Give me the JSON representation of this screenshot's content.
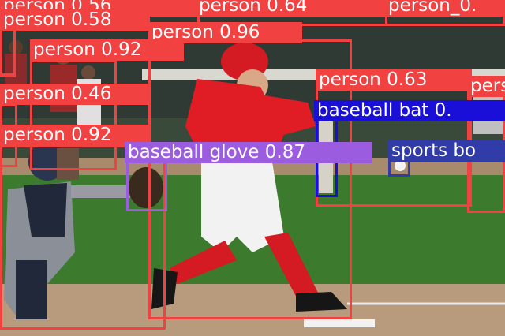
{
  "scene": {
    "description_hidden": false,
    "colors": {
      "person": "#f24141",
      "baseball_bat": "#1a0fd8",
      "baseball_glove": "#9c5ce0",
      "sports_ball": "#323ca8",
      "grass": "#3c7a2e",
      "dirt": "#b89a7c"
    }
  },
  "detections": [
    {
      "label": "person",
      "score": "0.56",
      "text": "person 0.56",
      "color": "#f24141"
    },
    {
      "label": "person",
      "score": "0.64",
      "text": "person 0.64",
      "color": "#f24141"
    },
    {
      "label": "person",
      "score": "0.58",
      "text": "person 0.58",
      "color": "#f24141"
    },
    {
      "label": "person",
      "score": "0.96",
      "text": "person 0.96",
      "color": "#f24141"
    },
    {
      "label": "person",
      "score": "0.92",
      "text": "person 0.92",
      "color": "#f24141"
    },
    {
      "label": "person",
      "score": "0.46",
      "text": "person 0.46",
      "color": "#f24141"
    },
    {
      "label": "person",
      "score": "0.92",
      "text": "person 0.92",
      "color": "#f24141"
    },
    {
      "label": "person",
      "score": "0.63",
      "text": "person 0.63",
      "color": "#f24141"
    },
    {
      "label": "person",
      "score": "",
      "text": "person_0.",
      "color": "#f24141"
    },
    {
      "label": "person",
      "score": "",
      "text": "pers",
      "color": "#f24141"
    },
    {
      "label": "baseball bat",
      "score": "0.",
      "text": "baseball bat 0.",
      "color": "#1a0fd8"
    },
    {
      "label": "baseball glove",
      "score": "0.87",
      "text": "baseball glove 0.87",
      "color": "#9c5ce0"
    },
    {
      "label": "sports ball",
      "score": "",
      "text": "sports bo",
      "color": "#323ca8"
    }
  ]
}
